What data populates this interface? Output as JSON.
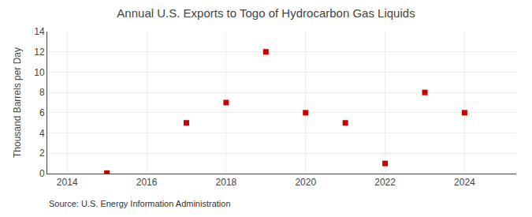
{
  "chart_data": {
    "type": "scatter",
    "title": "Annual U.S. Exports to Togo of Hydrocarbon Gas Liquids",
    "ylabel": "Thousand Barrels per Day",
    "annotations": [
      "Source: U.S. Energy Information Administration"
    ],
    "x": [
      2015,
      2017,
      2018,
      2019,
      2020,
      2021,
      2022,
      2023,
      2024
    ],
    "values": [
      0.05,
      5,
      7,
      12,
      6,
      5,
      1,
      8,
      6
    ],
    "color": "#cc0000",
    "marker": "square",
    "xlim": [
      2013.5,
      2025.3
    ],
    "xticks": [
      2014,
      2016,
      2018,
      2020,
      2022,
      2024
    ],
    "ylim": [
      0,
      14
    ],
    "yticks": [
      0,
      2,
      4,
      6,
      8,
      10,
      12,
      14
    ],
    "grid": true
  }
}
